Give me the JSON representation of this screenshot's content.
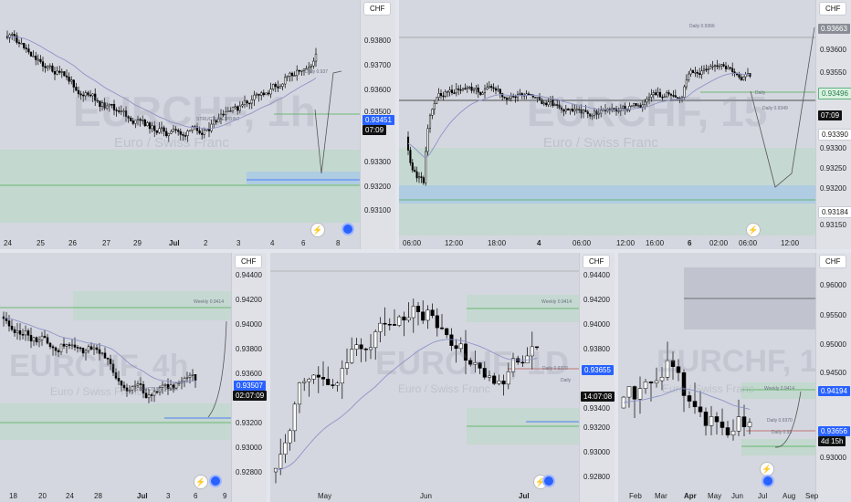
{
  "colors": {
    "bg": "#d4d7df",
    "up": "#ffffff",
    "down": "#000000",
    "wick": "#000000",
    "ma": "#8e93c9",
    "demand_zone": "#b8d8c4",
    "blue_zone": "#a9c9e6",
    "green_line": "#4caf50",
    "blue_line": "#2962ff",
    "price_tag_blue": "#2962ff"
  },
  "icons": {
    "bolt": "lightning-icon",
    "dot": "blue-dot-icon"
  },
  "panels": [
    {
      "id": "p1",
      "currency": "CHF",
      "watermark": "EURCHF, 1h",
      "watermark_sub": "Euro / Swiss Franc",
      "price_ticks": [
        "0.93800",
        "0.93700",
        "0.93600",
        "0.93500",
        "0.93300",
        "0.93200",
        "0.93100"
      ],
      "time_ticks": [
        {
          "t": "24"
        },
        {
          "t": "25"
        },
        {
          "t": "26"
        },
        {
          "t": "27"
        },
        {
          "t": "29"
        },
        {
          "t": "Jul",
          "bold": true
        },
        {
          "t": "2"
        },
        {
          "t": "3"
        },
        {
          "t": "4"
        },
        {
          "t": "6"
        },
        {
          "t": "8"
        }
      ],
      "tags": [
        {
          "text": "0.93451",
          "cls": "blue"
        },
        {
          "text": "07:09",
          "cls": "dark"
        }
      ],
      "notes": [
        "STRUCTURE POINT",
        "Daily 0.937"
      ]
    },
    {
      "id": "p2",
      "currency": "CHF",
      "watermark": "EURCHF, 15",
      "watermark_sub": "Euro / Swiss Franc",
      "price_ticks": [
        "0.93663",
        "0.93600",
        "0.93550",
        "0.93496",
        "0.93450",
        "0.93390",
        "0.93300",
        "0.93250",
        "0.93200",
        "0.93184",
        "0.93150"
      ],
      "time_ticks": [
        {
          "t": "06:00"
        },
        {
          "t": "12:00"
        },
        {
          "t": "18:00"
        },
        {
          "t": "4",
          "bold": true
        },
        {
          "t": "06:00"
        },
        {
          "t": "12:00"
        },
        {
          "t": "16:00"
        },
        {
          "t": "6",
          "bold": true
        },
        {
          "t": "02:00"
        },
        {
          "t": "06:00"
        },
        {
          "t": "12:00"
        }
      ],
      "tags": [
        {
          "text": "0.93663",
          "cls": "grey"
        },
        {
          "text": "0.93496",
          "cls": "green"
        },
        {
          "text": "07:09",
          "cls": "dark"
        },
        {
          "text": "0.93390",
          "cls": "light"
        },
        {
          "text": "0.93184",
          "cls": "light"
        }
      ],
      "notes": [
        "Daily 0.9366",
        "Daily",
        "Daily 0.9349"
      ]
    },
    {
      "id": "p3",
      "currency": "CHF",
      "watermark": "EURCHF, 4h",
      "watermark_sub": "Euro / Swiss Franc",
      "price_ticks": [
        "0.94400",
        "0.94200",
        "0.94000",
        "0.93800",
        "0.93600",
        "0.93507",
        "0.93200",
        "0.93000",
        "0.92800"
      ],
      "time_ticks": [
        {
          "t": "18"
        },
        {
          "t": "20"
        },
        {
          "t": "24"
        },
        {
          "t": "28"
        },
        {
          "t": "Jul",
          "bold": true
        },
        {
          "t": "3"
        },
        {
          "t": "6"
        },
        {
          "t": "9"
        }
      ],
      "tags": [
        {
          "text": "0.93507",
          "cls": "blue"
        },
        {
          "text": "02:07:09",
          "cls": "dark"
        }
      ],
      "notes": [
        "STRUCTURE POINT",
        "Weekly 0.9414"
      ]
    },
    {
      "id": "p4",
      "currency": "CHF",
      "watermark": "EURCHF, 1D",
      "watermark_sub": "Euro / Swiss Franc",
      "price_ticks": [
        "0.94400",
        "0.94200",
        "0.94000",
        "0.93800",
        "0.93655",
        "0.93400",
        "0.93200",
        "0.93000",
        "0.92800"
      ],
      "time_ticks": [
        {
          "t": "May"
        },
        {
          "t": "Jun"
        },
        {
          "t": "Jul",
          "bold": true
        }
      ],
      "tags": [
        {
          "text": "0.93655",
          "cls": "blue"
        },
        {
          "text": "14:07:08",
          "cls": "dark"
        }
      ],
      "notes": [
        "Weekly 0.9414",
        "Daily 0.9370",
        "Daily"
      ]
    },
    {
      "id": "p5",
      "currency": "CHF",
      "watermark": "EURCHF, 1W",
      "watermark_sub": "Euro / Swiss Franc",
      "price_ticks": [
        "0.96000",
        "0.95500",
        "0.95000",
        "0.94500",
        "0.94194",
        "0.93500",
        "0.93000"
      ],
      "time_ticks": [
        {
          "t": "Feb"
        },
        {
          "t": "Mar"
        },
        {
          "t": "Apr",
          "bold": true
        },
        {
          "t": "May"
        },
        {
          "t": "Jun"
        },
        {
          "t": "Jul"
        },
        {
          "t": "Aug"
        },
        {
          "t": "Sep"
        }
      ],
      "tags": [
        {
          "text": "0.94194",
          "cls": "blue"
        },
        {
          "text": "0.93656",
          "cls": "blue"
        },
        {
          "text": "4d 15h",
          "cls": "dark"
        }
      ],
      "notes": [
        "Weekly 0.9414",
        "Daily 0.9370",
        "Daily 0.93"
      ]
    }
  ]
}
